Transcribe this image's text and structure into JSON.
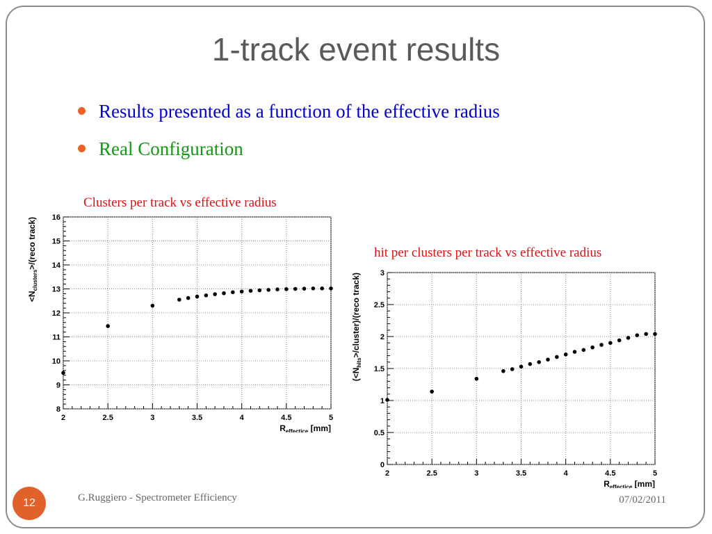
{
  "slide": {
    "title": "1-track event results",
    "bullets": [
      "Results presented as a function of the effective radius",
      "Real Configuration"
    ],
    "page_number": "12",
    "footer_left": "G.Ruggiero - Spectrometer Efficiency",
    "footer_right": "07/02/2011",
    "colors": {
      "bullet1": "#0000cc",
      "bullet2": "#119911",
      "caption": "#dd1111",
      "accent": "#e0612a"
    }
  },
  "chart_data": [
    {
      "type": "scatter",
      "caption": "Clusters per track vs effective radius",
      "ylabel_main": "<N",
      "ylabel_sub": "clusters",
      "ylabel_rest": ">/(reco track)",
      "xlabel_main": "R",
      "xlabel_sub": "effectice",
      "xlabel_rest": " [mm]",
      "xlim": [
        2,
        5
      ],
      "ylim": [
        8,
        16
      ],
      "x_ticks": [
        "2",
        "2.5",
        "3",
        "3.5",
        "4",
        "4.5",
        "5"
      ],
      "y_ticks": [
        "8",
        "9",
        "10",
        "11",
        "12",
        "13",
        "14",
        "15",
        "16"
      ],
      "grid": true,
      "x": [
        2.0,
        2.5,
        3.0,
        3.3,
        3.4,
        3.5,
        3.6,
        3.7,
        3.8,
        3.9,
        4.0,
        4.1,
        4.2,
        4.3,
        4.4,
        4.5,
        4.6,
        4.7,
        4.8,
        4.9,
        5.0
      ],
      "y": [
        9.5,
        11.45,
        12.3,
        12.55,
        12.62,
        12.68,
        12.73,
        12.78,
        12.82,
        12.86,
        12.89,
        12.92,
        12.94,
        12.96,
        12.98,
        12.99,
        13.0,
        13.01,
        13.02,
        13.02,
        13.02
      ]
    },
    {
      "type": "scatter",
      "caption": "hit per clusters  per track vs effective radius",
      "ylabel_main": "(<N",
      "ylabel_sub": "hits",
      "ylabel_rest": ">/cluster)/(reco track)",
      "xlabel_main": "R",
      "xlabel_sub": "effectice",
      "xlabel_rest": " [mm]",
      "xlim": [
        2,
        5
      ],
      "ylim": [
        0,
        3
      ],
      "x_ticks": [
        "2",
        "2.5",
        "3",
        "3.5",
        "4",
        "4.5",
        "5"
      ],
      "y_ticks": [
        "0",
        "0.5",
        "1",
        "1.5",
        "2",
        "2.5",
        "3"
      ],
      "grid": true,
      "x": [
        2.0,
        2.5,
        3.0,
        3.3,
        3.4,
        3.5,
        3.6,
        3.7,
        3.8,
        3.9,
        4.0,
        4.1,
        4.2,
        4.3,
        4.4,
        4.5,
        4.6,
        4.7,
        4.8,
        4.9,
        5.0
      ],
      "y": [
        1.01,
        1.14,
        1.34,
        1.46,
        1.49,
        1.53,
        1.57,
        1.6,
        1.64,
        1.68,
        1.72,
        1.76,
        1.79,
        1.83,
        1.87,
        1.9,
        1.94,
        1.98,
        2.02,
        2.04,
        2.04
      ]
    }
  ]
}
